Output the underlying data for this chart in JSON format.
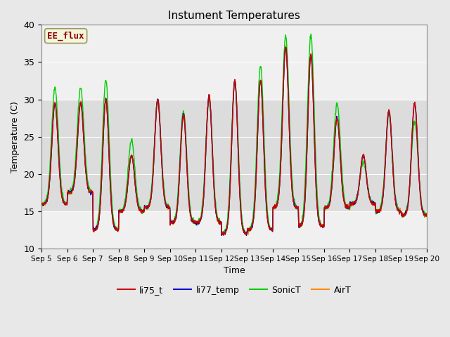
{
  "title": "Instument Temperatures",
  "xlabel": "Time",
  "ylabel": "Temperature (C)",
  "ylim": [
    10,
    40
  ],
  "yticks": [
    10,
    15,
    20,
    25,
    30,
    35,
    40
  ],
  "xtick_labels": [
    "Sep 5",
    "Sep 6",
    "Sep 7",
    "Sep 8",
    "Sep 9",
    "Sep 10",
    "Sep 11",
    "Sep 12",
    "Sep 13",
    "Sep 14",
    "Sep 15",
    "Sep 16",
    "Sep 17",
    "Sep 18",
    "Sep 19",
    "Sep 20"
  ],
  "outer_bg_color": "#e8e8e8",
  "inner_bg_color": "#f0f0f0",
  "band_color": "#dcdcdc",
  "annotation_text": "EE_flux",
  "annotation_color": "#8b0000",
  "annotation_bg": "#f5f5dc",
  "legend_labels": [
    "li75_t",
    "li77_temp",
    "SonicT",
    "AirT"
  ],
  "line_colors": [
    "#cc0000",
    "#0000cc",
    "#00cc00",
    "#ff8800"
  ],
  "line_width": 1.0,
  "title_fontsize": 11,
  "grid_color": "#ffffff"
}
